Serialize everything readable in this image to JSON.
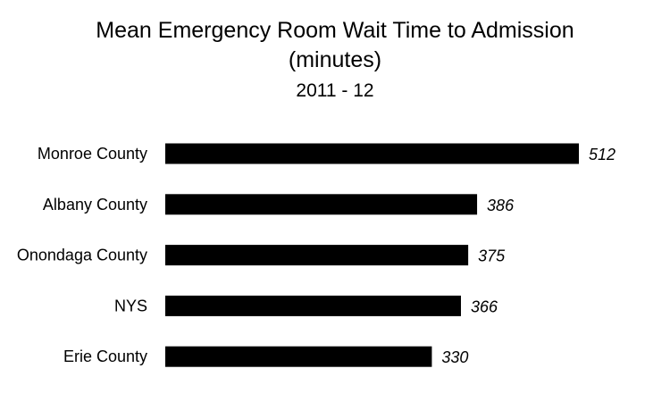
{
  "chart_data": {
    "type": "bar",
    "orientation": "horizontal",
    "title_lines": [
      "Mean Emergency Room Wait Time to Admission",
      "(minutes)"
    ],
    "subtitle": "2011 - 12",
    "categories": [
      "Monroe County",
      "Albany County",
      "Onondaga County",
      "NYS",
      "Erie County"
    ],
    "values": [
      512,
      386,
      375,
      366,
      330
    ],
    "data_labels": [
      "512",
      "386",
      "375",
      "366",
      "330"
    ],
    "bar_color": "#000000",
    "xlim": [
      0,
      512
    ],
    "axes_visible": false,
    "grid": false,
    "legend": "none"
  }
}
